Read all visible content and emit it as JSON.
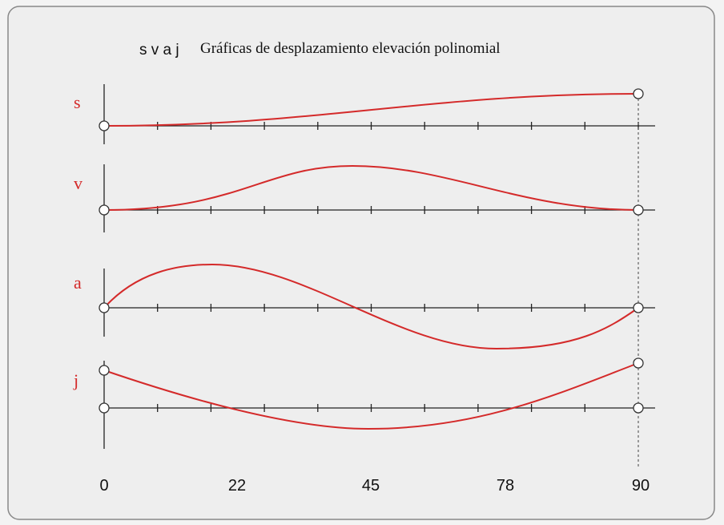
{
  "header": {
    "symbols": "s v a j",
    "title": "Gráficas de desplazamiento elevación polinomial"
  },
  "curves": [
    {
      "label": "s"
    },
    {
      "label": "v"
    },
    {
      "label": "a"
    },
    {
      "label": "j"
    }
  ],
  "x_labels": [
    "0",
    "22",
    "45",
    "78",
    "90"
  ]
}
